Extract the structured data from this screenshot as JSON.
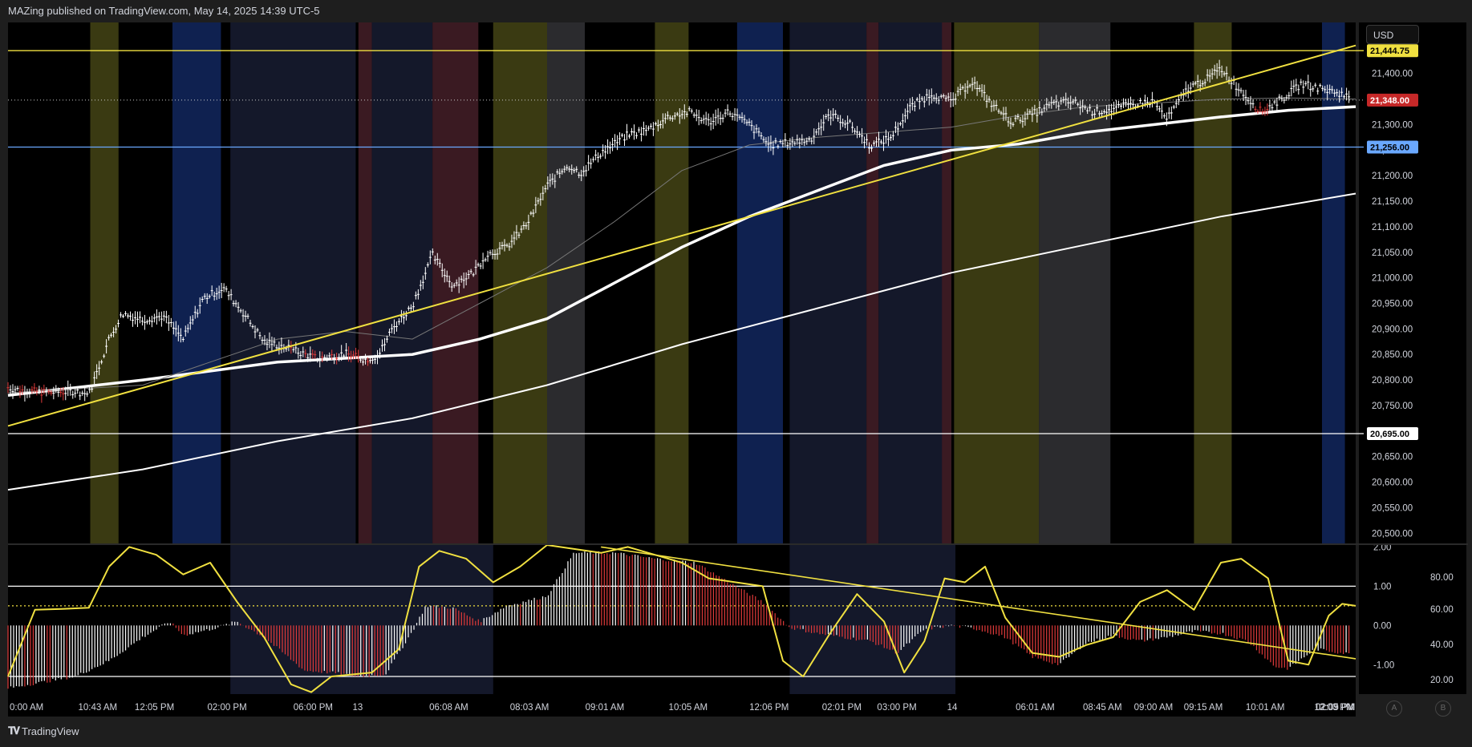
{
  "header": {
    "title": "MAZing published on TradingView.com, May 14, 2025 14:39 UTC-5"
  },
  "footer": {
    "brand": "TradingView",
    "brand_icon": "tradingview-logo"
  },
  "controls": {
    "currency": "USD",
    "scale_a": "A",
    "scale_b": "B"
  },
  "colors": {
    "background": "#000000",
    "candle": "#ffffff",
    "candle_down_marker": "#e03a3a",
    "trendline": "#f0e040",
    "hline_yellow": "#f0e040",
    "hline_blue": "#6aa8ff",
    "hline_white": "#ffffff",
    "session_yellow": "#3a3a12",
    "session_blue": "#0f2150",
    "session_red": "#3a1a22",
    "session_gray": "#2b2b2e",
    "session_navy": "#14182a",
    "osc_line": "#f0e040",
    "hist_pos": "#ffffff",
    "hist_neg": "#e03a3a"
  },
  "chart_data": [
    {
      "type": "line",
      "name": "price",
      "x": [
        "0:00 AM",
        "10:43 AM",
        "12:05 PM",
        "02:00 PM",
        "06:00 PM",
        "13",
        "06:08 AM",
        "08:03 AM",
        "09:01 AM",
        "10:05 AM",
        "12:06 PM",
        "02:01 PM",
        "03:00 PM",
        "14",
        "06:01 AM",
        "08:45 AM",
        "09:00 AM",
        "09:15 AM",
        "10:01 AM",
        "12:00 PM",
        "01:05 PM",
        "02:09 PM"
      ],
      "y_ticks": [
        21400,
        21350,
        21300,
        21250,
        21200,
        21150,
        21100,
        21050,
        21000,
        20950,
        20900,
        20850,
        20800,
        20750,
        20700,
        20650,
        20600,
        20550,
        20500
      ],
      "ylim": [
        20480,
        21500
      ],
      "price_path": [
        [
          0,
          20785
        ],
        [
          0.01,
          20780
        ],
        [
          0.03,
          20775
        ],
        [
          0.05,
          20778
        ],
        [
          0.06,
          20772
        ],
        [
          0.075,
          20880
        ],
        [
          0.085,
          20930
        ],
        [
          0.1,
          20918
        ],
        [
          0.115,
          20925
        ],
        [
          0.13,
          20880
        ],
        [
          0.145,
          20960
        ],
        [
          0.16,
          20980
        ],
        [
          0.175,
          20930
        ],
        [
          0.19,
          20875
        ],
        [
          0.205,
          20865
        ],
        [
          0.215,
          20855
        ],
        [
          0.23,
          20842
        ],
        [
          0.25,
          20852
        ],
        [
          0.265,
          20840
        ],
        [
          0.275,
          20848
        ],
        [
          0.285,
          20900
        ],
        [
          0.3,
          20945
        ],
        [
          0.315,
          21045
        ],
        [
          0.33,
          20985
        ],
        [
          0.345,
          21010
        ],
        [
          0.355,
          21045
        ],
        [
          0.37,
          21060
        ],
        [
          0.385,
          21105
        ],
        [
          0.4,
          21180
        ],
        [
          0.415,
          21220
        ],
        [
          0.425,
          21205
        ],
        [
          0.44,
          21245
        ],
        [
          0.46,
          21280
        ],
        [
          0.475,
          21290
        ],
        [
          0.49,
          21315
        ],
        [
          0.505,
          21325
        ],
        [
          0.52,
          21305
        ],
        [
          0.535,
          21325
        ],
        [
          0.55,
          21300
        ],
        [
          0.565,
          21260
        ],
        [
          0.58,
          21265
        ],
        [
          0.595,
          21270
        ],
        [
          0.61,
          21320
        ],
        [
          0.625,
          21300
        ],
        [
          0.64,
          21258
        ],
        [
          0.655,
          21275
        ],
        [
          0.67,
          21335
        ],
        [
          0.685,
          21360
        ],
        [
          0.7,
          21345
        ],
        [
          0.715,
          21385
        ],
        [
          0.73,
          21340
        ],
        [
          0.745,
          21305
        ],
        [
          0.76,
          21320
        ],
        [
          0.775,
          21340
        ],
        [
          0.79,
          21345
        ],
        [
          0.805,
          21325
        ],
        [
          0.82,
          21330
        ],
        [
          0.835,
          21340
        ],
        [
          0.85,
          21345
        ],
        [
          0.86,
          21310
        ],
        [
          0.875,
          21370
        ],
        [
          0.89,
          21390
        ],
        [
          0.9,
          21410
        ],
        [
          0.915,
          21365
        ],
        [
          0.93,
          21325
        ],
        [
          0.945,
          21350
        ],
        [
          0.96,
          21380
        ],
        [
          0.975,
          21370
        ],
        [
          0.99,
          21360
        ],
        [
          1.0,
          21345
        ]
      ],
      "ma_fast_path": [
        [
          0,
          20775
        ],
        [
          0.1,
          20790
        ],
        [
          0.2,
          20880
        ],
        [
          0.25,
          20895
        ],
        [
          0.3,
          20880
        ],
        [
          0.35,
          20950
        ],
        [
          0.4,
          21020
        ],
        [
          0.45,
          21110
        ],
        [
          0.5,
          21210
        ],
        [
          0.55,
          21260
        ],
        [
          0.6,
          21275
        ],
        [
          0.65,
          21285
        ],
        [
          0.7,
          21295
        ],
        [
          0.75,
          21318
        ],
        [
          0.8,
          21335
        ],
        [
          0.85,
          21342
        ],
        [
          0.9,
          21350
        ],
        [
          0.95,
          21352
        ],
        [
          1.0,
          21350
        ]
      ],
      "ma_mid_path": [
        [
          0,
          20770
        ],
        [
          0.1,
          20800
        ],
        [
          0.2,
          20835
        ],
        [
          0.3,
          20850
        ],
        [
          0.35,
          20880
        ],
        [
          0.4,
          20920
        ],
        [
          0.45,
          20990
        ],
        [
          0.5,
          21060
        ],
        [
          0.55,
          21120
        ],
        [
          0.6,
          21170
        ],
        [
          0.65,
          21220
        ],
        [
          0.7,
          21250
        ],
        [
          0.75,
          21262
        ],
        [
          0.8,
          21285
        ],
        [
          0.85,
          21300
        ],
        [
          0.9,
          21315
        ],
        [
          0.95,
          21328
        ],
        [
          1.0,
          21335
        ]
      ],
      "ma_slow_path": [
        [
          0,
          20585
        ],
        [
          0.1,
          20625
        ],
        [
          0.2,
          20680
        ],
        [
          0.3,
          20725
        ],
        [
          0.4,
          20790
        ],
        [
          0.5,
          20870
        ],
        [
          0.6,
          20940
        ],
        [
          0.7,
          21010
        ],
        [
          0.8,
          21065
        ],
        [
          0.9,
          21120
        ],
        [
          1.0,
          21165
        ]
      ],
      "trendline": [
        [
          0,
          20710
        ],
        [
          1.0,
          21455
        ]
      ],
      "hlines": [
        {
          "label": "21,444.75",
          "value": 21444.75,
          "color": "#f0e040"
        },
        {
          "label": "21,348.00",
          "value": 21348.0,
          "color": "#e03a3a",
          "dotted": true
        },
        {
          "label": "21,256.00",
          "value": 21256.0,
          "color": "#6aa8ff"
        },
        {
          "label": "20,695.00",
          "value": 20695.0,
          "color": "#ffffff"
        }
      ],
      "y_tick_labels": [
        "21,400.00",
        "21,350.00",
        "21,300.00",
        "21,250.00",
        "21,200.00",
        "21,150.00",
        "21,100.00",
        "21,050.00",
        "21,000.00",
        "20,950.00",
        "20,900.00",
        "20,850.00",
        "20,800.00",
        "20,750.00",
        "20,700.00",
        "20,650.00",
        "20,600.00",
        "20,550.00",
        "20,500.00"
      ]
    },
    {
      "type": "line",
      "name": "oscillator",
      "left_ticks": [
        "2.00",
        "1.00",
        "0.00",
        "-1.00"
      ],
      "right_ticks": [
        "80.00",
        "60.00",
        "40.00",
        "20.00"
      ],
      "ylim": [
        -1.75,
        2.05
      ],
      "osc_path": [
        [
          0,
          -1.3
        ],
        [
          0.02,
          0.4
        ],
        [
          0.04,
          0.42
        ],
        [
          0.06,
          0.45
        ],
        [
          0.075,
          1.5
        ],
        [
          0.09,
          2.0
        ],
        [
          0.11,
          1.8
        ],
        [
          0.13,
          1.3
        ],
        [
          0.15,
          1.6
        ],
        [
          0.17,
          0.6
        ],
        [
          0.19,
          -0.3
        ],
        [
          0.21,
          -1.5
        ],
        [
          0.225,
          -1.7
        ],
        [
          0.24,
          -1.3
        ],
        [
          0.27,
          -1.2
        ],
        [
          0.29,
          -0.6
        ],
        [
          0.305,
          1.5
        ],
        [
          0.32,
          1.9
        ],
        [
          0.34,
          1.7
        ],
        [
          0.36,
          1.1
        ],
        [
          0.38,
          1.5
        ],
        [
          0.4,
          2.05
        ],
        [
          0.42,
          1.95
        ],
        [
          0.44,
          1.85
        ],
        [
          0.46,
          2.0
        ],
        [
          0.48,
          1.8
        ],
        [
          0.5,
          1.6
        ],
        [
          0.52,
          1.2
        ],
        [
          0.54,
          1.1
        ],
        [
          0.56,
          1.0
        ],
        [
          0.575,
          -0.9
        ],
        [
          0.59,
          -1.3
        ],
        [
          0.61,
          -0.2
        ],
        [
          0.63,
          0.8
        ],
        [
          0.65,
          0.1
        ],
        [
          0.665,
          -1.2
        ],
        [
          0.68,
          -0.4
        ],
        [
          0.695,
          1.2
        ],
        [
          0.71,
          1.1
        ],
        [
          0.725,
          1.5
        ],
        [
          0.74,
          0.2
        ],
        [
          0.76,
          -0.7
        ],
        [
          0.78,
          -0.8
        ],
        [
          0.8,
          -0.5
        ],
        [
          0.82,
          -0.3
        ],
        [
          0.84,
          0.6
        ],
        [
          0.86,
          0.9
        ],
        [
          0.88,
          0.4
        ],
        [
          0.9,
          1.6
        ],
        [
          0.915,
          1.7
        ],
        [
          0.935,
          1.2
        ],
        [
          0.95,
          -0.9
        ],
        [
          0.965,
          -1.0
        ],
        [
          0.98,
          0.25
        ],
        [
          0.99,
          0.55
        ],
        [
          1.0,
          0.5
        ]
      ],
      "hist_path": [
        [
          0,
          -1.6
        ],
        [
          0.05,
          -1.3
        ],
        [
          0.075,
          -0.9
        ],
        [
          0.1,
          -0.3
        ],
        [
          0.12,
          0.1
        ],
        [
          0.13,
          -0.25
        ],
        [
          0.15,
          -0.1
        ],
        [
          0.17,
          0.1
        ],
        [
          0.19,
          -0.3
        ],
        [
          0.22,
          -1.15
        ],
        [
          0.24,
          -1.2
        ],
        [
          0.26,
          -1.3
        ],
        [
          0.28,
          -1.25
        ],
        [
          0.3,
          -0.15
        ],
        [
          0.31,
          0.5
        ],
        [
          0.33,
          0.45
        ],
        [
          0.35,
          0.1
        ],
        [
          0.37,
          0.5
        ],
        [
          0.4,
          0.75
        ],
        [
          0.42,
          1.85
        ],
        [
          0.45,
          1.85
        ],
        [
          0.48,
          1.7
        ],
        [
          0.51,
          1.6
        ],
        [
          0.53,
          1.2
        ],
        [
          0.56,
          0.6
        ],
        [
          0.58,
          -0.05
        ],
        [
          0.6,
          -0.2
        ],
        [
          0.62,
          -0.3
        ],
        [
          0.64,
          -0.4
        ],
        [
          0.66,
          -0.7
        ],
        [
          0.68,
          -0.1
        ],
        [
          0.7,
          0.0
        ],
        [
          0.72,
          -0.1
        ],
        [
          0.74,
          -0.3
        ],
        [
          0.76,
          -0.8
        ],
        [
          0.78,
          -1.0
        ],
        [
          0.8,
          -0.45
        ],
        [
          0.82,
          -0.25
        ],
        [
          0.84,
          -0.4
        ],
        [
          0.86,
          -0.3
        ],
        [
          0.88,
          -0.15
        ],
        [
          0.9,
          -0.2
        ],
        [
          0.92,
          -0.4
        ],
        [
          0.94,
          -1.05
        ],
        [
          0.95,
          -1.1
        ],
        [
          0.97,
          -0.6
        ],
        [
          0.99,
          -0.7
        ],
        [
          1.0,
          -0.75
        ]
      ],
      "hlines_right": [
        80,
        60,
        20
      ],
      "trendline": [
        [
          0.44,
          2.0
        ],
        [
          1.0,
          -0.85
        ]
      ]
    }
  ],
  "sessions": [
    {
      "from": 0.061,
      "to": 0.082,
      "color": "yellow"
    },
    {
      "from": 0.122,
      "to": 0.158,
      "color": "blue"
    },
    {
      "from": 0.165,
      "to": 0.258,
      "color": "navy"
    },
    {
      "from": 0.26,
      "to": 0.27,
      "color": "red"
    },
    {
      "from": 0.27,
      "to": 0.315,
      "color": "navy"
    },
    {
      "from": 0.315,
      "to": 0.349,
      "color": "red"
    },
    {
      "from": 0.36,
      "to": 0.4,
      "color": "yellow"
    },
    {
      "from": 0.4,
      "to": 0.428,
      "color": "gray"
    },
    {
      "from": 0.48,
      "to": 0.505,
      "color": "yellow"
    },
    {
      "from": 0.541,
      "to": 0.575,
      "color": "blue"
    },
    {
      "from": 0.58,
      "to": 0.637,
      "color": "navy"
    },
    {
      "from": 0.637,
      "to": 0.646,
      "color": "red"
    },
    {
      "from": 0.646,
      "to": 0.7,
      "color": "navy"
    },
    {
      "from": 0.693,
      "to": 0.7,
      "color": "red"
    },
    {
      "from": 0.702,
      "to": 0.765,
      "color": "yellow"
    },
    {
      "from": 0.765,
      "to": 0.818,
      "color": "gray"
    },
    {
      "from": 0.88,
      "to": 0.908,
      "color": "yellow"
    },
    {
      "from": 0.975,
      "to": 0.992,
      "color": "blue"
    }
  ],
  "osc_sessions": [
    {
      "from": 0.165,
      "to": 0.36,
      "color": "navy"
    },
    {
      "from": 0.58,
      "to": 0.703,
      "color": "navy"
    }
  ],
  "x_tick_labels": [
    "0:00 AM",
    "10:43 AM",
    "12:05 PM",
    "02:00 PM",
    "06:00 PM",
    "13",
    "06:08 AM",
    "08:03 AM",
    "09:01 AM",
    "10:05 AM",
    "12:06 PM",
    "02:01 PM",
    "03:00 PM",
    "14",
    "06:01 AM",
    "08:45 AM",
    "09:00 AM",
    "09:15 AM",
    "10:01 AM",
    "12:00 PM",
    "01:05 PM",
    "02:09 PM"
  ]
}
